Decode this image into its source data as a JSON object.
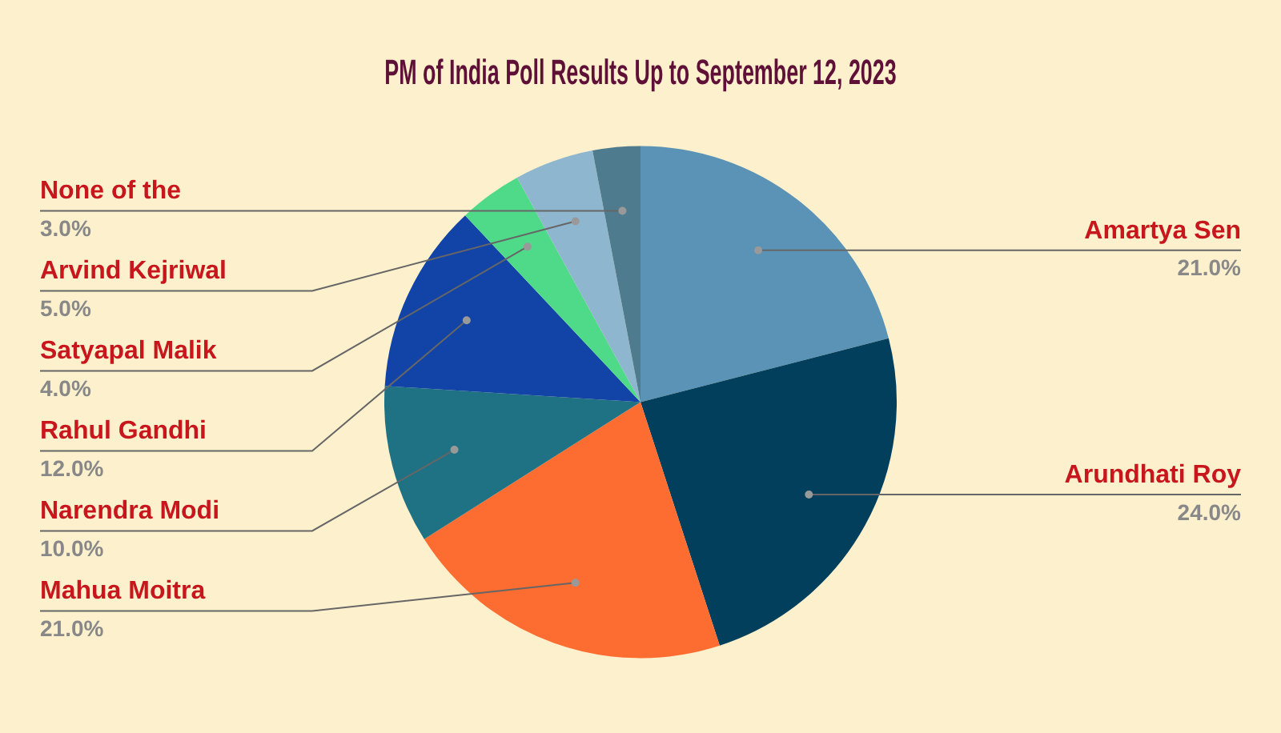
{
  "chart_data": {
    "type": "pie",
    "title": "PM of India Poll Results Up to September 12, 2023",
    "categories": [
      "Amartya Sen",
      "Arundhati Roy",
      "Mahua Moitra",
      "Narendra Modi",
      "Rahul Gandhi",
      "Satyapal Malik",
      "Arvind Kejriwal",
      "None of the"
    ],
    "values": [
      21,
      24,
      21,
      10,
      12,
      4,
      5,
      3
    ],
    "colors": [
      "#5a93b6",
      "#023f5d",
      "#fd6c31",
      "#1e7284",
      "#1244a8",
      "#4fda8a",
      "#8fb6cf",
      "#4f7b8f"
    ],
    "value_labels": [
      "21.0%",
      "24.0%",
      "21.0%",
      "10.0%",
      "12.0%",
      "4.0%",
      "5.0%",
      "3.0%"
    ],
    "legend": false
  }
}
